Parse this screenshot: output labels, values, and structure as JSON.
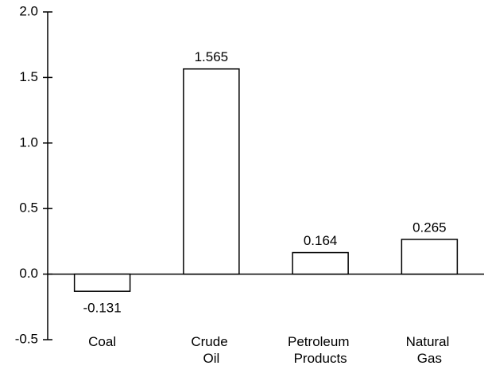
{
  "chart_data": {
    "type": "bar",
    "categories": [
      "Coal",
      "Crude Oil",
      "Petroleum Products",
      "Natural Gas"
    ],
    "values": [
      -0.131,
      1.565,
      0.164,
      0.265
    ],
    "color": "#ffffff",
    "ylim": [
      -0.5,
      2.0
    ],
    "yticks": [
      {
        "value": -0.5,
        "label": "-0.5"
      },
      {
        "value": 0,
        "label": "0.0"
      },
      {
        "value": 0.5,
        "label": "0.5"
      },
      {
        "value": 1.0,
        "label": "1.0"
      },
      {
        "value": 1.5,
        "label": "1.5"
      },
      {
        "value": 2.0,
        "label": "2.0"
      }
    ],
    "grid": false
  }
}
